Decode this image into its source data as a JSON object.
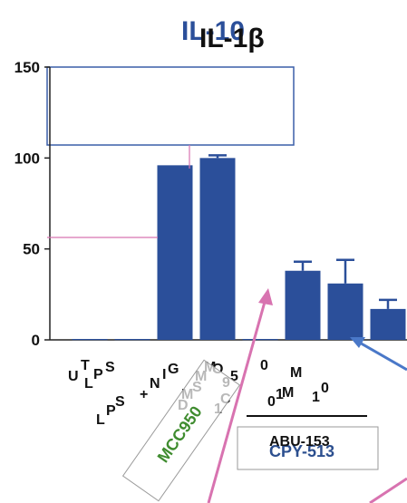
{
  "colors": {
    "bar": "#2b4f9a",
    "axis": "#222222",
    "title_back": "#2b4f9a",
    "overlay_box": "#3a5fa8",
    "pink": "#d873b0",
    "green": "#4a8f2f"
  },
  "chart_data": {
    "type": "bar",
    "title": "IL-1β",
    "title_shadow": "IL-10",
    "ylim": [
      0,
      150
    ],
    "yticks": [
      0,
      50,
      100,
      150
    ],
    "categories": [
      "UT",
      "LPS",
      "LPS +NIG",
      "MSU",
      "MCC950 1 μM",
      "ABU-153 0.1 μM",
      "ABU-153 1 μM",
      "ABU-153 10 μM"
    ],
    "values": [
      0.5,
      0.5,
      96,
      100,
      0.5,
      38,
      31,
      17
    ],
    "errors": [
      0,
      0,
      0,
      1.5,
      0,
      5,
      13,
      5
    ],
    "group_label": "ABU-153",
    "overlay_label": "CPY-513",
    "rotated_label": "MCC950",
    "grid": false,
    "legend": "none"
  },
  "cat_labels": {
    "ut_u": "U",
    "ut_t": "T",
    "ut_l": "L",
    "ut_p": "P",
    "ut_s": "S",
    "lps_l": "L",
    "lps_p": "P",
    "lps_s": "S",
    "nig_plus": "+",
    "nig_n": "N",
    "nig_i": "I",
    "nig_g": "G",
    "msu_m": "M",
    "msu_s": "S",
    "msu_d": "D",
    "msu_m2": "M",
    "msu_n": "M",
    "msu_o": "O",
    "mcc_9": "9",
    "mcc_5": "5",
    "mcc_0": "0",
    "mcc_1": "1",
    "mcc_c": "C",
    "mcc_m": "M",
    "abu_0": "0",
    "abu_1": "1",
    "abu_m": "M",
    "abu_one": "1",
    "abu_zero": "0"
  }
}
